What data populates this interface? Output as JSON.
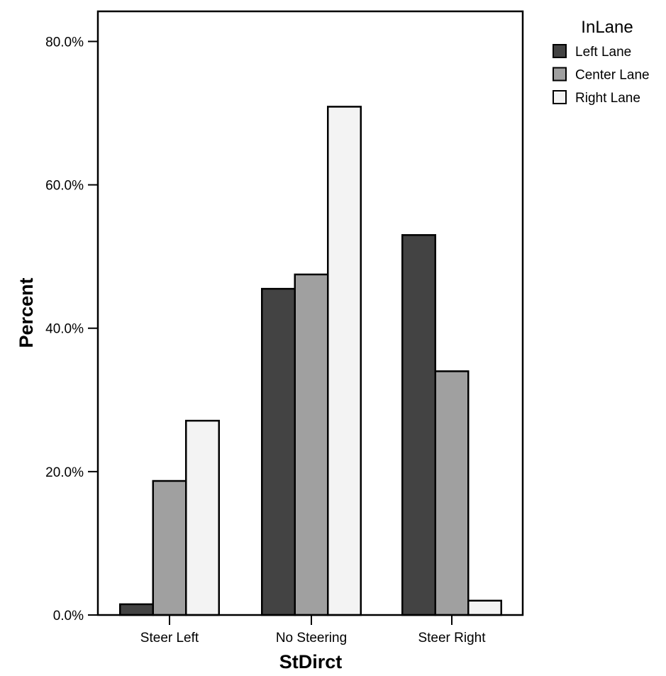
{
  "chart_data": {
    "type": "bar",
    "xlabel": "StDirct",
    "ylabel": "Percent",
    "categories": [
      "Steer Left",
      "No Steering",
      "Steer Right"
    ],
    "series": [
      {
        "name": "Left Lane",
        "values": [
          1.5,
          45.5,
          53.0
        ],
        "color": "#434343"
      },
      {
        "name": "Center Lane",
        "values": [
          18.7,
          47.5,
          34.0
        ],
        "color": "#a0a0a0"
      },
      {
        "name": "Right Lane",
        "values": [
          27.1,
          70.9,
          2.0
        ],
        "color": "#f3f3f3"
      }
    ],
    "ylim": [
      0,
      84.2
    ],
    "yticks": [
      0,
      20,
      40,
      60,
      80
    ],
    "ytick_labels": [
      "0.0%",
      "20.0%",
      "40.0%",
      "60.0%",
      "80.0%"
    ],
    "legend": {
      "title": "InLane",
      "placement": "top-right, outside plot"
    },
    "grid": false
  }
}
